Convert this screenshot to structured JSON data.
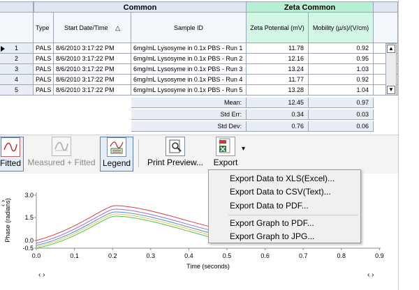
{
  "grid": {
    "group_common": "Common",
    "group_zeta": "Zeta Common",
    "columns": {
      "type": "Type",
      "start": "Start Date/Time",
      "sort_indicator": "△",
      "sample": "Sample ID",
      "zeta": "Zeta Potential (mV)",
      "mobility": "Mobility (µ/s)/(V/cm)"
    },
    "rows": [
      {
        "num": "1",
        "type": "PALS",
        "start": "8/6/2010 3:17:22 PM",
        "sample": "6mg/mL Lysosyme in 0.1x PBS - Run 1",
        "zeta": "11.78",
        "mobility": "0.92"
      },
      {
        "num": "2",
        "type": "PALS",
        "start": "8/6/2010 3:17:22 PM",
        "sample": "6mg/mL Lysosyme in 0.1x PBS - Run 2",
        "zeta": "12.16",
        "mobility": "0.95"
      },
      {
        "num": "3",
        "type": "PALS",
        "start": "8/6/2010 3:17:22 PM",
        "sample": "6mg/mL Lysosyme in 0.1x PBS - Run 3",
        "zeta": "13.24",
        "mobility": "1.03"
      },
      {
        "num": "4",
        "type": "PALS",
        "start": "8/6/2010 3:17:22 PM",
        "sample": "6mg/mL Lysosyme in 0.1x PBS - Run 4",
        "zeta": "11.77",
        "mobility": "0.92"
      },
      {
        "num": "5",
        "type": "PALS",
        "start": "8/6/2010 3:17:22 PM",
        "sample": "6mg/mL Lysosyme in 0.1x PBS - Run 5",
        "zeta": "13.28",
        "mobility": "1.04"
      }
    ],
    "stats": [
      {
        "label": "Mean:",
        "zeta": "12.45",
        "mobility": "0.97"
      },
      {
        "label": "Std Err:",
        "zeta": "0.34",
        "mobility": "0.03"
      },
      {
        "label": "Std Dev:",
        "zeta": "0.76",
        "mobility": "0.06"
      }
    ]
  },
  "toolbar": {
    "fitted": "Fitted",
    "measured_fitted": "Measured + Fitted",
    "legend": "Legend",
    "print_preview": "Print Preview...",
    "export": "Export",
    "export_caret": "▾"
  },
  "export_menu": {
    "items": [
      "Export Data to XLS(Excel)...",
      "Export Data to CSV(Text)...",
      "Export Data to PDF...",
      "Export Graph to PDF...",
      "Export Graph to JPG..."
    ]
  },
  "graph": {
    "ylabel": "Phase (radians)",
    "xlabel": "Time (seconds)",
    "yticks": [
      "3.0",
      "1.5",
      "0.0",
      "-0.5"
    ],
    "xticks": [
      "0.0",
      "0.1",
      "0.2",
      "0.3",
      "0.4",
      "0.5",
      "0.6",
      "0.7",
      "0.8",
      "0.9"
    ],
    "nav_left": "‹ ›",
    "nav_right": "‹ ›",
    "side_nav": "‹ ›"
  },
  "colors": {
    "common_header": "#dde6f2",
    "zeta_header": "#b9f0d4",
    "menu_bg": "#f0f0f0",
    "curves": [
      "#e0393a",
      "#9a6ad6",
      "#4a8ee0",
      "#e8c84a",
      "#4ac64a"
    ]
  }
}
